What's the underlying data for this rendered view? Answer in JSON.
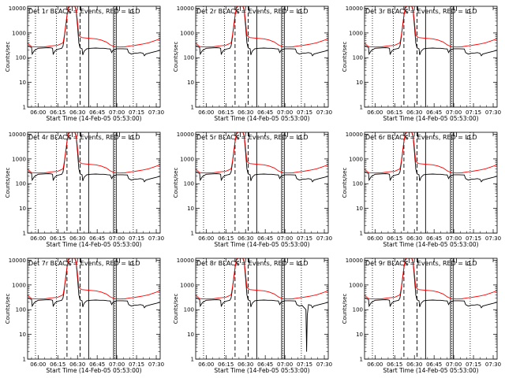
{
  "figure": {
    "panels": [
      {
        "title": "Det 1r  BLACK = Events, RED = LLD"
      },
      {
        "title": "Det 2r  BLACK = Events, RED = LLD"
      },
      {
        "title": "Det 3r  BLACK = Events, RED = LLD"
      },
      {
        "title": "Det 4r  BLACK = Events, RED = LLD"
      },
      {
        "title": "Det 5r  BLACK = Events, RED = LLD"
      },
      {
        "title": "Det 6r  BLACK = Events, RED = LLD"
      },
      {
        "title": "Det 7r  BLACK = Events, RED = LLD"
      },
      {
        "title": "Det 8r  BLACK = Events, RED = LLD"
      },
      {
        "title": "Det 9r  BLACK = Events, RED = LLD"
      }
    ]
  },
  "chart_data": {
    "type": "line",
    "layout": "3x3 grid of identical panels, one per detector",
    "xlabel": "Start Time (14-Feb-05 05:53:00)",
    "ylabel": "Counts/sec",
    "y_scale": "log",
    "ylim": [
      1,
      12000
    ],
    "y_ticks": [
      1,
      10,
      100,
      1000,
      10000
    ],
    "y_tick_labels": [
      "1",
      "10",
      "100",
      "1000",
      "10000"
    ],
    "x_unit": "minutes after 06:00",
    "xlim": [
      -8,
      93
    ],
    "x_ticks": [
      0,
      15,
      30,
      45,
      60,
      75,
      90
    ],
    "x_tick_labels": [
      "06:00",
      "06:15",
      "06:30",
      "06:45",
      "07:00",
      "07:15",
      "07:30"
    ],
    "x_units_note": "x values below are minutes after 06:00",
    "markers": {
      "dotted": [
        -2,
        14,
        58.5,
        72.5
      ],
      "dashed": [
        22,
        32
      ],
      "solid": [
        38.5,
        57.5,
        59.5
      ],
      "letters": [
        {
          "text": "S",
          "x": 24
        },
        {
          "text": "C",
          "x": 71
        }
      ],
      "tick_dots": [
        26,
        32.5,
        62
      ]
    },
    "series": [
      {
        "name": "Events",
        "color": "#000000",
        "points": [
          [
            -8,
            300
          ],
          [
            -5,
            260
          ],
          [
            -4.5,
            140
          ],
          [
            -3,
            190
          ],
          [
            0,
            240
          ],
          [
            5,
            250
          ],
          [
            8,
            255
          ],
          [
            10,
            250
          ],
          [
            11,
            240
          ],
          [
            11.5,
            140
          ],
          [
            13,
            190
          ],
          [
            15,
            220
          ],
          [
            18,
            240
          ],
          [
            19,
            300
          ],
          [
            20,
            700
          ],
          [
            21,
            1800
          ],
          [
            22,
            5000
          ],
          [
            23,
            10000
          ],
          [
            24,
            12000
          ],
          [
            28,
            12000
          ],
          [
            29,
            8000
          ],
          [
            30,
            2000
          ],
          [
            31,
            400
          ],
          [
            32,
            250
          ],
          [
            33.5,
            230
          ],
          [
            34,
            130
          ],
          [
            35,
            180
          ],
          [
            37,
            230
          ],
          [
            40,
            240
          ],
          [
            44,
            245
          ],
          [
            47,
            240
          ],
          [
            50,
            240
          ],
          [
            53,
            230
          ],
          [
            55,
            225
          ],
          [
            56,
            160
          ],
          [
            57,
            200
          ],
          [
            60,
            230
          ],
          [
            64,
            230
          ],
          [
            68,
            225
          ],
          [
            69,
            160
          ],
          [
            71,
            140
          ],
          [
            73,
            150
          ],
          [
            76,
            155
          ],
          [
            78,
            160
          ],
          [
            80,
            150
          ],
          [
            81,
            120
          ],
          [
            82,
            140
          ],
          [
            86,
            160
          ],
          [
            90,
            180
          ],
          [
            93,
            200
          ]
        ]
      },
      {
        "name": "LLD",
        "color": "#ff0000",
        "points": [
          [
            -8,
            380
          ],
          [
            -5,
            280
          ],
          [
            0,
            270
          ],
          [
            5,
            275
          ],
          [
            10,
            300
          ],
          [
            15,
            320
          ],
          [
            19,
            400
          ],
          [
            20,
            800
          ],
          [
            21,
            2000
          ],
          [
            22,
            5000
          ],
          [
            23,
            11000
          ],
          [
            24,
            12000
          ],
          [
            28,
            12000
          ],
          [
            29,
            9000
          ],
          [
            30,
            3000
          ],
          [
            31,
            800
          ],
          [
            33,
            650
          ],
          [
            36,
            630
          ],
          [
            40,
            600
          ],
          [
            44,
            580
          ],
          [
            48,
            520
          ],
          [
            52,
            430
          ],
          [
            55,
            330
          ],
          [
            58,
            280
          ],
          [
            62,
            270
          ],
          [
            66,
            275
          ],
          [
            70,
            300
          ],
          [
            73,
            310
          ],
          [
            76,
            330
          ],
          [
            80,
            360
          ],
          [
            84,
            400
          ],
          [
            88,
            470
          ],
          [
            93,
            580
          ]
        ]
      }
    ],
    "panel_variants": [
      {
        "panel": "Det 8r",
        "events_note": "deep drop near 07:12",
        "dip_points": [
          [
            76,
            100
          ],
          [
            76.5,
            2
          ],
          [
            77,
            60
          ],
          [
            78,
            160
          ]
        ]
      }
    ]
  }
}
